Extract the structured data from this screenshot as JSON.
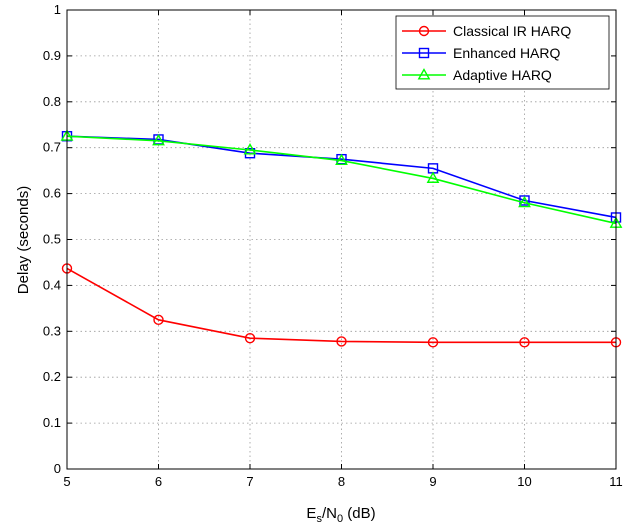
{
  "chart_data": {
    "type": "line",
    "title": "",
    "xlabel": "E",
    "xlabel_sub1": "s",
    "xlabel_mid": "/N",
    "xlabel_sub2": "0",
    "xlabel_tail": " (dB)",
    "ylabel": "Delay (seconds)",
    "x": [
      5,
      6,
      7,
      8,
      9,
      10,
      11
    ],
    "xlim": [
      5,
      11
    ],
    "ylim": [
      0,
      1
    ],
    "xticks": [
      5,
      6,
      7,
      8,
      9,
      10,
      11
    ],
    "yticks": [
      0,
      0.1,
      0.2,
      0.3,
      0.4,
      0.5,
      0.6,
      0.7,
      0.8,
      0.9,
      1
    ],
    "grid": true,
    "legend_position": "top-right",
    "series": [
      {
        "name": "Classical IR HARQ",
        "color": "#ff0000",
        "marker": "circle",
        "values": [
          0.437,
          0.325,
          0.285,
          0.278,
          0.276,
          0.276,
          0.276
        ]
      },
      {
        "name": "Enhanced HARQ",
        "color": "#0000ff",
        "marker": "square",
        "values": [
          0.725,
          0.718,
          0.688,
          0.675,
          0.655,
          0.585,
          0.548
        ]
      },
      {
        "name": "Adaptive HARQ",
        "color": "#00ff00",
        "marker": "triangle",
        "values": [
          0.725,
          0.715,
          0.695,
          0.672,
          0.633,
          0.58,
          0.535
        ]
      }
    ]
  }
}
